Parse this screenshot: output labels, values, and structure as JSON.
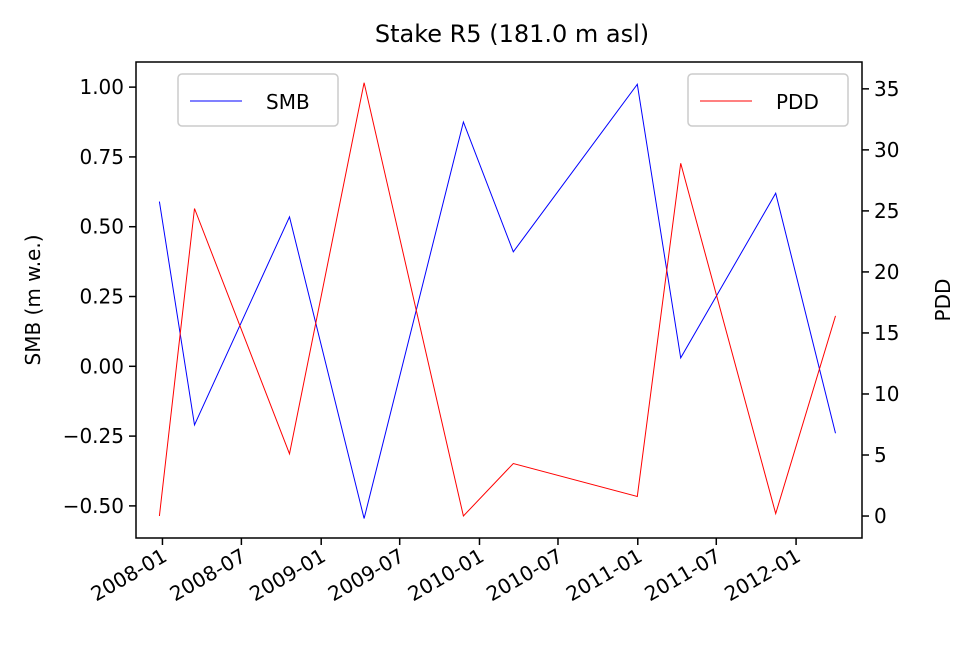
{
  "chart_data": {
    "type": "line",
    "title": "Stake R5 (181.0 m asl)",
    "xlabel": "",
    "ylabel": "SMB (m w.e.)",
    "y2label": "PDD",
    "x_tick_labels": [
      "2008-01",
      "2008-07",
      "2009-01",
      "2009-07",
      "2010-01",
      "2010-07",
      "2011-01",
      "2011-07",
      "2012-01"
    ],
    "y_ticks": [
      "1.00",
      "0.75",
      "0.50",
      "0.25",
      "0.00",
      "−0.25",
      "−0.50"
    ],
    "y2_ticks": [
      "35",
      "30",
      "25",
      "20",
      "15",
      "10",
      "5",
      "0"
    ],
    "ylim": [
      -0.615,
      1.09
    ],
    "y2lim": [
      -1.8,
      37.2
    ],
    "grid": false,
    "series": [
      {
        "name": "SMB",
        "axis": "left",
        "color": "#0000ff",
        "legend_position": "top-left",
        "points": [
          {
            "date": "2007-12-25",
            "value": 0.59
          },
          {
            "date": "2008-03-15",
            "value": -0.21
          },
          {
            "date": "2008-10-20",
            "value": 0.535
          },
          {
            "date": "2009-04-10",
            "value": -0.545
          },
          {
            "date": "2009-11-25",
            "value": 0.875
          },
          {
            "date": "2010-03-20",
            "value": 0.41
          },
          {
            "date": "2010-12-31",
            "value": 1.01
          },
          {
            "date": "2011-04-10",
            "value": 0.03
          },
          {
            "date": "2011-11-15",
            "value": 0.62
          },
          {
            "date": "2012-04-01",
            "value": -0.24
          }
        ]
      },
      {
        "name": "PDD",
        "axis": "right",
        "color": "#ff0000",
        "legend_position": "top-right",
        "points": [
          {
            "date": "2007-12-25",
            "value": 0.0
          },
          {
            "date": "2008-03-15",
            "value": 25.2
          },
          {
            "date": "2008-10-20",
            "value": 5.1
          },
          {
            "date": "2009-04-10",
            "value": 35.5
          },
          {
            "date": "2009-11-25",
            "value": 0.0
          },
          {
            "date": "2010-03-20",
            "value": 4.3
          },
          {
            "date": "2010-12-31",
            "value": 1.6
          },
          {
            "date": "2011-04-10",
            "value": 28.9
          },
          {
            "date": "2011-11-15",
            "value": 0.2
          },
          {
            "date": "2012-04-01",
            "value": 16.4
          }
        ]
      }
    ]
  }
}
